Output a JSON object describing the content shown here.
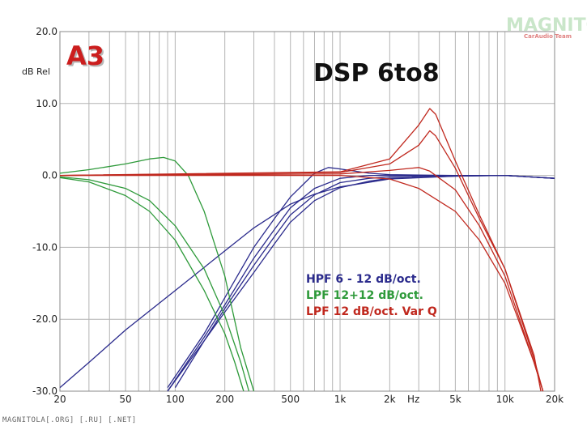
{
  "chart_data": {
    "type": "line",
    "title": "DSP 6to8",
    "ylabel": "dB Rel",
    "xlabel": "Hz",
    "xscale": "log",
    "xlim": [
      20,
      20000
    ],
    "ylim": [
      -30,
      20
    ],
    "grid": true,
    "yticks": [
      {
        "value": 20,
        "label": "20.0"
      },
      {
        "value": 10,
        "label": "10.0"
      },
      {
        "value": 0,
        "label": "0.0"
      },
      {
        "value": -10,
        "label": "-10.0"
      },
      {
        "value": -20,
        "label": "-20.0"
      },
      {
        "value": -30,
        "label": "-30.0"
      }
    ],
    "xticks": [
      {
        "value": 20,
        "label": "20"
      },
      {
        "value": 50,
        "label": "50"
      },
      {
        "value": 100,
        "label": "100"
      },
      {
        "value": 200,
        "label": "200"
      },
      {
        "value": 500,
        "label": "500"
      },
      {
        "value": 1000,
        "label": "1k"
      },
      {
        "value": 2000,
        "label": "2k"
      },
      {
        "value": 5000,
        "label": "5k"
      },
      {
        "value": 10000,
        "label": "10k"
      },
      {
        "value": 20000,
        "label": "20k"
      }
    ],
    "legend": [
      {
        "label": "HPF 6 - 12 dB/oct.",
        "color": "#2a2a8c"
      },
      {
        "label": "LPF 12+12 dB/oct.",
        "color": "#2e9a3a"
      },
      {
        "label": "LPF 12 dB/oct. Var Q",
        "color": "#c0281e"
      }
    ],
    "legend_position": "center-right",
    "series": [
      {
        "color": "#2a2a8c",
        "points": [
          [
            20,
            -29.5
          ],
          [
            30,
            -26
          ],
          [
            50,
            -21.5
          ],
          [
            100,
            -16
          ],
          [
            200,
            -10.5
          ],
          [
            300,
            -7.3
          ],
          [
            500,
            -4
          ],
          [
            700,
            -2.6
          ],
          [
            1000,
            -1.6
          ],
          [
            2000,
            -0.5
          ],
          [
            5000,
            -0.1
          ],
          [
            10000,
            0
          ],
          [
            20000,
            -0.4
          ]
        ]
      },
      {
        "color": "#2a2a8c",
        "points": [
          [
            100,
            -29.5
          ],
          [
            150,
            -23
          ],
          [
            200,
            -19
          ],
          [
            300,
            -13.5
          ],
          [
            400,
            -9.5
          ],
          [
            500,
            -6.5
          ],
          [
            700,
            -3.5
          ],
          [
            1000,
            -1.7
          ],
          [
            1500,
            -0.8
          ],
          [
            2000,
            -0.4
          ],
          [
            5000,
            -0.1
          ],
          [
            10000,
            0
          ],
          [
            20000,
            -0.4
          ]
        ]
      },
      {
        "color": "#2a2a8c",
        "points": [
          [
            90,
            -30
          ],
          [
            150,
            -23
          ],
          [
            200,
            -18.5
          ],
          [
            300,
            -12.5
          ],
          [
            400,
            -8.5
          ],
          [
            500,
            -5.5
          ],
          [
            700,
            -2.7
          ],
          [
            1000,
            -1
          ],
          [
            1500,
            -0.4
          ],
          [
            2000,
            -0.2
          ],
          [
            5000,
            0
          ],
          [
            10000,
            0
          ],
          [
            20000,
            -0.4
          ]
        ]
      },
      {
        "color": "#2a2a8c",
        "points": [
          [
            90,
            -30
          ],
          [
            150,
            -22.5
          ],
          [
            200,
            -18
          ],
          [
            300,
            -11.5
          ],
          [
            400,
            -7.5
          ],
          [
            500,
            -4.5
          ],
          [
            700,
            -1.8
          ],
          [
            1000,
            -0.4
          ],
          [
            1500,
            0
          ],
          [
            2000,
            0
          ],
          [
            5000,
            0
          ],
          [
            10000,
            0
          ],
          [
            20000,
            -0.4
          ]
        ]
      },
      {
        "color": "#2a2a8c",
        "points": [
          [
            90,
            -29.5
          ],
          [
            150,
            -22
          ],
          [
            200,
            -17
          ],
          [
            300,
            -10
          ],
          [
            400,
            -6
          ],
          [
            500,
            -3
          ],
          [
            700,
            0.3
          ],
          [
            850,
            1.1
          ],
          [
            1000,
            0.9
          ],
          [
            1500,
            0.3
          ],
          [
            2000,
            0.1
          ],
          [
            5000,
            0
          ],
          [
            10000,
            0
          ],
          [
            20000,
            -0.4
          ]
        ]
      },
      {
        "color": "#2e9a3a",
        "points": [
          [
            20,
            0.3
          ],
          [
            30,
            0.8
          ],
          [
            50,
            1.6
          ],
          [
            70,
            2.3
          ],
          [
            85,
            2.5
          ],
          [
            100,
            2
          ],
          [
            120,
            0
          ],
          [
            150,
            -5
          ],
          [
            200,
            -14
          ],
          [
            250,
            -24
          ],
          [
            300,
            -30
          ]
        ]
      },
      {
        "color": "#2e9a3a",
        "points": [
          [
            20,
            -0.2
          ],
          [
            30,
            -0.6
          ],
          [
            50,
            -1.8
          ],
          [
            70,
            -3.5
          ],
          [
            100,
            -7
          ],
          [
            150,
            -13
          ],
          [
            200,
            -19.5
          ],
          [
            250,
            -26
          ],
          [
            280,
            -30
          ]
        ]
      },
      {
        "color": "#2e9a3a",
        "points": [
          [
            20,
            -0.3
          ],
          [
            30,
            -0.9
          ],
          [
            50,
            -2.8
          ],
          [
            70,
            -5
          ],
          [
            100,
            -9
          ],
          [
            150,
            -16
          ],
          [
            200,
            -22
          ],
          [
            230,
            -26
          ],
          [
            260,
            -30
          ]
        ]
      },
      {
        "color": "#c0281e",
        "points": [
          [
            20,
            0
          ],
          [
            500,
            0
          ],
          [
            1000,
            0
          ],
          [
            2000,
            -0.5
          ],
          [
            3000,
            -1.8
          ],
          [
            5000,
            -5
          ],
          [
            7000,
            -9
          ],
          [
            10000,
            -15
          ],
          [
            15000,
            -26
          ],
          [
            17000,
            -30
          ]
        ]
      },
      {
        "color": "#c0281e",
        "points": [
          [
            20,
            0
          ],
          [
            1000,
            0.2
          ],
          [
            2000,
            0.7
          ],
          [
            3000,
            1.1
          ],
          [
            3500,
            0.6
          ],
          [
            5000,
            -2
          ],
          [
            7000,
            -7
          ],
          [
            10000,
            -14
          ],
          [
            15000,
            -26
          ],
          [
            17000,
            -30
          ]
        ]
      },
      {
        "color": "#c0281e",
        "points": [
          [
            20,
            0
          ],
          [
            1000,
            0.4
          ],
          [
            2000,
            1.6
          ],
          [
            3000,
            4.2
          ],
          [
            3500,
            6.2
          ],
          [
            3800,
            5.5
          ],
          [
            5000,
            1
          ],
          [
            7000,
            -6
          ],
          [
            10000,
            -13
          ],
          [
            15000,
            -25.5
          ],
          [
            17000,
            -30
          ]
        ]
      },
      {
        "color": "#c0281e",
        "points": [
          [
            20,
            0
          ],
          [
            1000,
            0.5
          ],
          [
            2000,
            2.3
          ],
          [
            3000,
            7
          ],
          [
            3500,
            9.3
          ],
          [
            3800,
            8.5
          ],
          [
            5000,
            2
          ],
          [
            7000,
            -5.5
          ],
          [
            10000,
            -13
          ],
          [
            15000,
            -25
          ],
          [
            16500,
            -30
          ]
        ]
      }
    ]
  },
  "branding": {
    "badge": "A3",
    "watermark_main": "MAGNITOLA",
    "watermark_sub": "CarAudio Team",
    "footer": "MAGNITOLA[.ORG] [.RU] [.NET]"
  },
  "colors": {
    "grid": "#b4b4b4",
    "badge": "#cc1e1e"
  }
}
